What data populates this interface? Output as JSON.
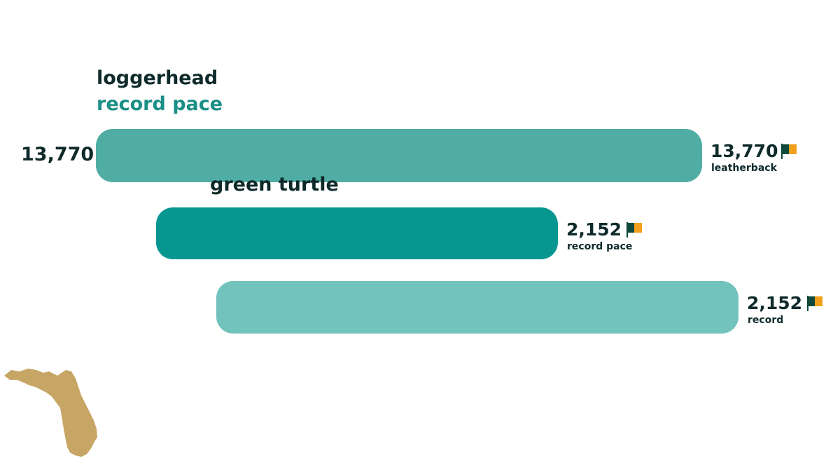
{
  "chart_data": {
    "type": "bar",
    "headings": [
      "loggerhead",
      "record pace"
    ],
    "left_label": "13,770",
    "series": [
      {
        "name": "loggerhead",
        "label": "green turtle",
        "value": 13770,
        "value_label": "13,770",
        "sublabel": "leatherback",
        "color": "#4fada3"
      },
      {
        "name": "green turtle",
        "label": "",
        "value": 2152,
        "value_label": "2,152",
        "sublabel": "record pace",
        "color": "#079690"
      },
      {
        "name": "record",
        "label": "",
        "value": 2152,
        "value_label": "2,152",
        "sublabel": "record",
        "color": "#72c3bb"
      }
    ]
  },
  "colors": {
    "heading_dark": "#0f2a2a",
    "heading_teal": "#1a8f85",
    "flag_dark": "#0f4a3a",
    "flag_orange": "#f2a01c",
    "map_gold": "#c7a565"
  },
  "icons": {
    "flag": "flag-icon",
    "map": "florida-map-icon"
  }
}
